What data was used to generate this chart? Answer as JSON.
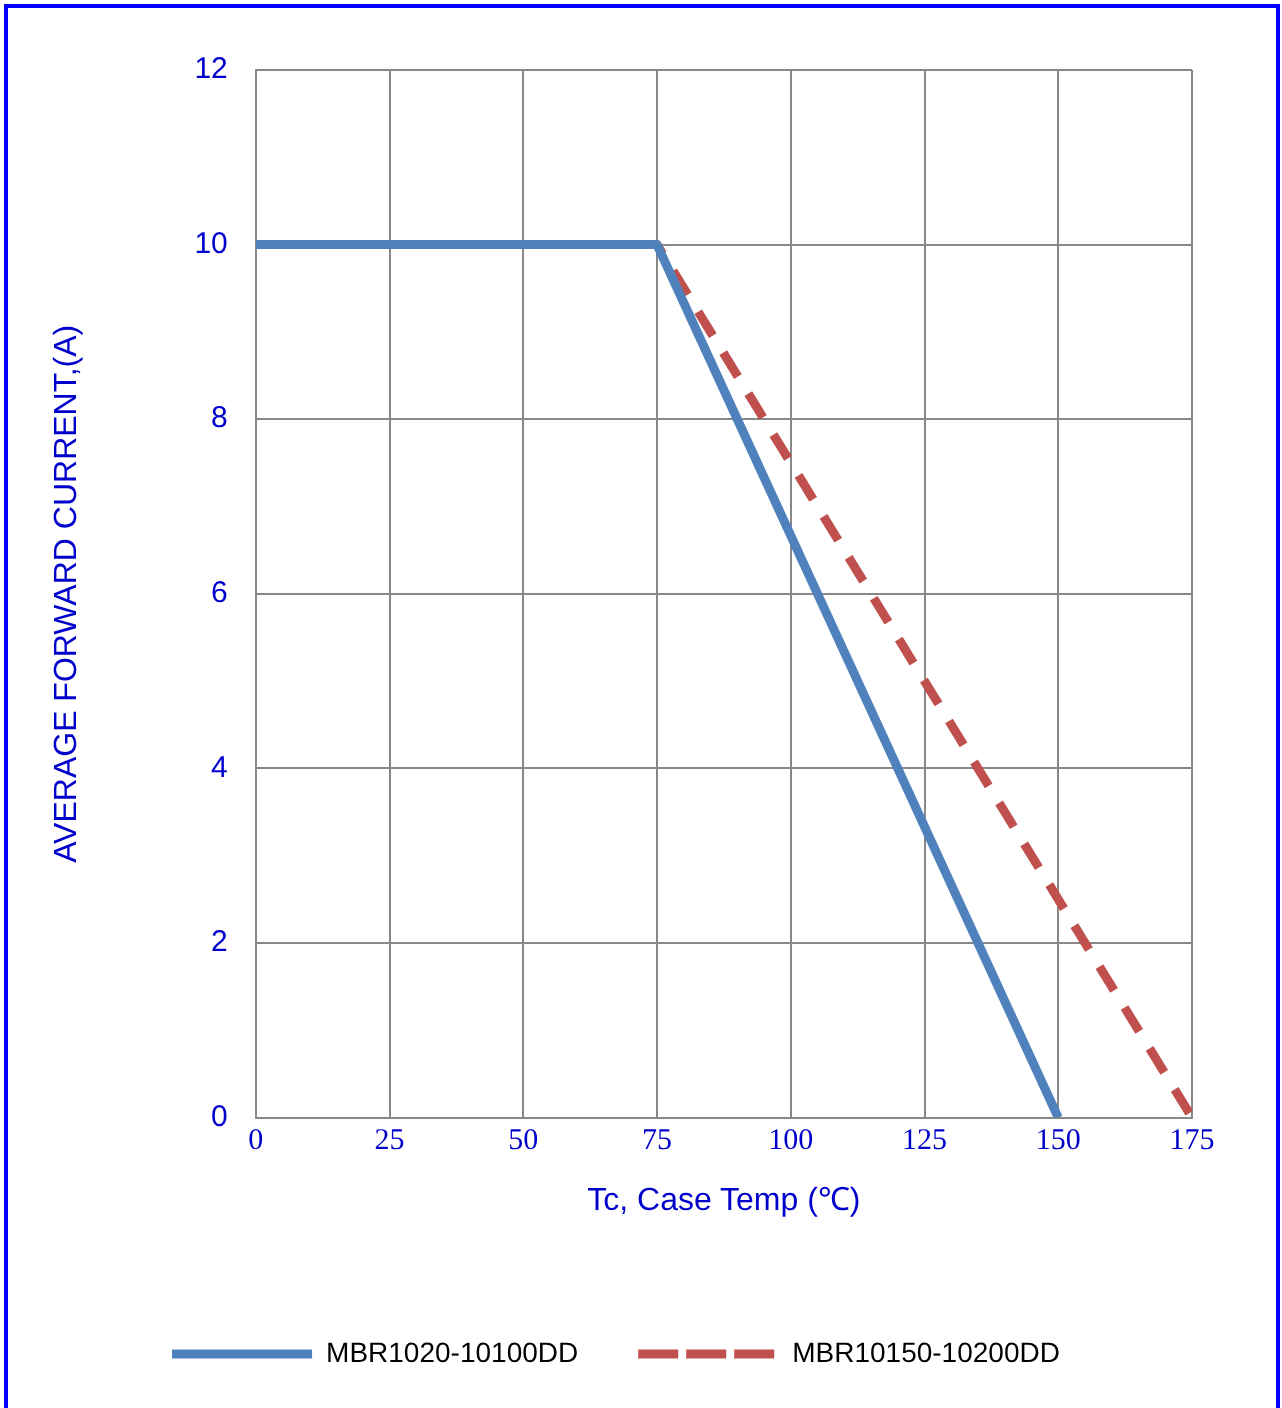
{
  "chart_data": {
    "type": "line",
    "xlabel": "Tc, Case Temp (℃)",
    "ylabel": "AVERAGE FORWARD CURRENT,(A)",
    "xlim": [
      0,
      175
    ],
    "xticks": [
      0,
      25,
      50,
      75,
      100,
      125,
      150,
      175
    ],
    "ylim": [
      0,
      12
    ],
    "yticks": [
      0,
      2,
      4,
      6,
      8,
      10,
      12
    ],
    "grid": true,
    "legend": "bottom",
    "marker": "none",
    "series": [
      {
        "name": "MBR1020-10100DD",
        "color": "#4f81bd",
        "line_style": "solid",
        "x": [
          0,
          75,
          150
        ],
        "values": [
          10,
          10,
          0
        ]
      },
      {
        "name": "MBR10150-10200DD",
        "color": "#c0504d",
        "line_style": "dashed",
        "x": [
          0,
          75,
          175
        ],
        "values": [
          10,
          10,
          0
        ]
      }
    ]
  }
}
